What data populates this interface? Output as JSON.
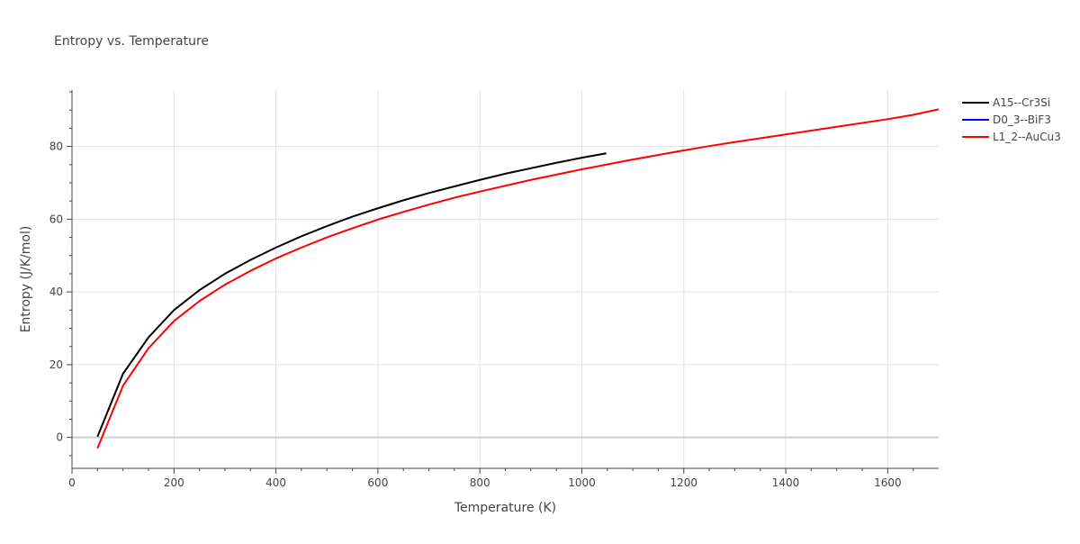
{
  "chart_data": {
    "type": "line",
    "title": "Entropy vs. Temperature",
    "xlabel": "Temperature (K)",
    "ylabel": "Entropy (J/K/mol)",
    "xlim": [
      0,
      1700
    ],
    "ylim": [
      -8.5,
      95.5
    ],
    "x_ticks": [
      0,
      200,
      400,
      600,
      800,
      1000,
      1200,
      1400,
      1600
    ],
    "y_ticks": [
      0,
      20,
      40,
      60,
      80
    ],
    "grid": true,
    "legend_position": "top-right",
    "series": [
      {
        "name": "A15--Cr3Si",
        "color": "#000000",
        "x": [
          50,
          100,
          150,
          200,
          250,
          300,
          350,
          400,
          450,
          500,
          550,
          600,
          650,
          700,
          750,
          800,
          850,
          900,
          950,
          1000,
          1048
        ],
        "y": [
          0.2,
          17.5,
          27.5,
          35.0,
          40.5,
          45.0,
          48.8,
          52.2,
          55.3,
          58.1,
          60.7,
          63.0,
          65.2,
          67.2,
          69.0,
          70.8,
          72.5,
          74.0,
          75.5,
          76.9,
          78.1
        ]
      },
      {
        "name": "D0_3--BiF3",
        "color": "#0000ff",
        "x": [],
        "y": []
      },
      {
        "name": "L1_2--AuCu3",
        "color": "#ff0000",
        "x": [
          50,
          100,
          150,
          200,
          250,
          300,
          350,
          400,
          450,
          500,
          550,
          600,
          650,
          700,
          750,
          800,
          900,
          1000,
          1100,
          1200,
          1250,
          1300,
          1400,
          1500,
          1600,
          1650,
          1700
        ],
        "y": [
          -3.0,
          14.2,
          24.5,
          32.0,
          37.5,
          42.0,
          45.8,
          49.2,
          52.2,
          55.0,
          57.5,
          59.9,
          62.0,
          64.0,
          65.9,
          67.6,
          70.8,
          73.7,
          76.4,
          78.9,
          80.1,
          81.2,
          83.3,
          85.4,
          87.5,
          88.7,
          90.2
        ]
      }
    ]
  }
}
